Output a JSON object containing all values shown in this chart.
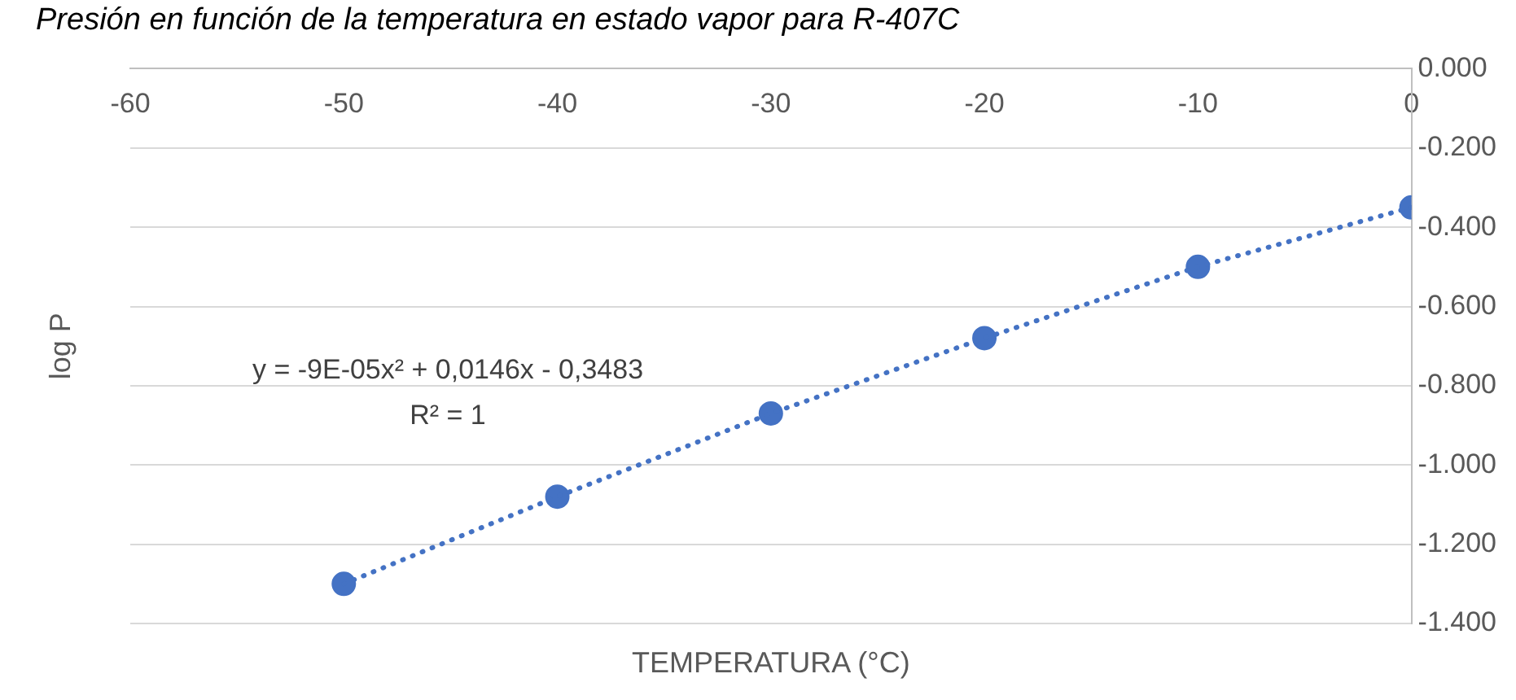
{
  "chart_data": {
    "type": "scatter",
    "title": "Presión en función de la temperatura en estado vapor para R-407C",
    "xlabel": "TEMPERATURA (°C)",
    "ylabel": "log P",
    "x": [
      -50,
      -40,
      -30,
      -20,
      -10,
      0
    ],
    "series": [
      {
        "type": "scatter",
        "color": "#4472c4",
        "marker": "circle",
        "values": [
          -1.3,
          -1.08,
          -0.87,
          -0.68,
          -0.5,
          -0.35
        ]
      },
      {
        "type": "line",
        "color": "#4472c4",
        "line_style": "dotted",
        "marker": "none",
        "x": [
          -50,
          -40,
          -30,
          -20,
          -10,
          0
        ],
        "values": [
          -1.3,
          -1.08,
          -0.87,
          -0.68,
          -0.5,
          -0.35
        ]
      }
    ],
    "xlim": [
      -60,
      0
    ],
    "xticks": [
      -60,
      -50,
      -40,
      -30,
      -20,
      -10,
      0
    ],
    "ylim": [
      -1.4,
      0
    ],
    "yticks": [
      {
        "value": -1.4,
        "label": "-1.400"
      },
      {
        "value": -1.2,
        "label": "-1.200"
      },
      {
        "value": -1.0,
        "label": "-1.000"
      },
      {
        "value": -0.8,
        "label": "-0.800"
      },
      {
        "value": -0.6,
        "label": "-0.600"
      },
      {
        "value": -0.4,
        "label": "-0.400"
      },
      {
        "value": -0.2,
        "label": "-0.200"
      },
      {
        "value": 0,
        "label": "0.000"
      }
    ],
    "grid": "y",
    "legend": false,
    "annotations": [
      "y = -9E-05x² + 0,0146x - 0,3483",
      "R² = 1"
    ]
  }
}
